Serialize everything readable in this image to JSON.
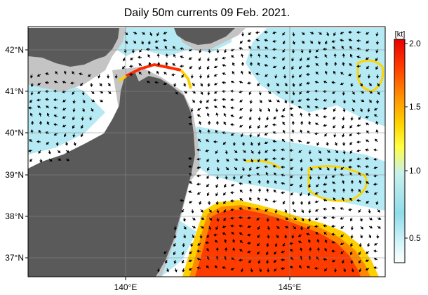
{
  "title": "Daily 50m currents 09 Feb. 2021.",
  "lat_ticks": [
    "42°N",
    "41°N",
    "40°N",
    "39°N",
    "38°N",
    "37°N"
  ],
  "lon_ticks": [
    "140°E",
    "145°E"
  ],
  "colorbar": {
    "unit": "[kt]",
    "labels": [
      "2.0",
      "1.5",
      "1.0",
      "0.5"
    ],
    "colors": [
      "#ffffff",
      "#b6ecf4",
      "#7fd8e6",
      "#ffff4d",
      "#ffd200",
      "#ff9a00",
      "#ff4a00",
      "#ee0000"
    ]
  },
  "colors": {
    "land": "#5a5a5a",
    "shelf": "#bfbfbf",
    "ocean": "#ffffff",
    "strong_current": "#ff3b00",
    "arrow": "#000000"
  }
}
